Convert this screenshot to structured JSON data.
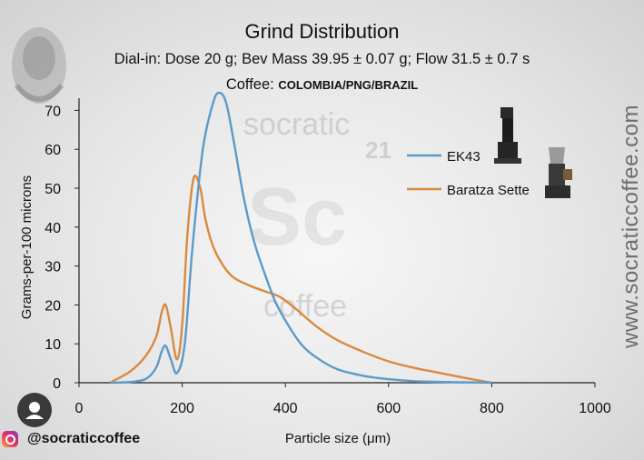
{
  "chart_data": {
    "type": "line",
    "title": "Grind Distribution",
    "subtitle": "Dial-in: Dose 20 g; Bev Mass 39.95 ± 0.07 g; Flow 31.5 ± 0.7 s",
    "coffee_label": "Coffee:",
    "coffee_value": "COLOMBIA/PNG/BRAZIL",
    "xlabel": "Particle size (μm)",
    "ylabel": "Grams-per-100 microns",
    "xlim": [
      0,
      1000
    ],
    "ylim": [
      0,
      75
    ],
    "xticks": [
      0,
      200,
      400,
      600,
      800,
      1000
    ],
    "yticks": [
      0,
      10,
      20,
      30,
      40,
      50,
      60,
      70
    ],
    "legend_position": "top-right",
    "series": [
      {
        "name": "EK43",
        "color": "#5b9bc8",
        "x": [
          60,
          100,
          130,
          150,
          160,
          168,
          178,
          190,
          205,
          220,
          240,
          260,
          272,
          285,
          300,
          320,
          340,
          360,
          380,
          400,
          430,
          460,
          500,
          550,
          600,
          650,
          700,
          750,
          800
        ],
        "y": [
          0,
          0.2,
          1,
          4,
          8,
          9.5,
          6,
          2.5,
          10,
          35,
          60,
          72,
          74.5,
          72,
          62,
          47,
          36,
          28,
          21,
          16,
          10,
          6.5,
          3.5,
          1.8,
          0.9,
          0.4,
          0.2,
          0.1,
          0
        ]
      },
      {
        "name": "Baratza Sette",
        "color": "#d98a3f",
        "x": [
          60,
          100,
          130,
          150,
          160,
          168,
          178,
          190,
          200,
          210,
          222,
          235,
          245,
          260,
          280,
          300,
          330,
          360,
          390,
          420,
          460,
          500,
          550,
          600,
          650,
          700,
          750,
          800
        ],
        "y": [
          0,
          3,
          7,
          12,
          18,
          20,
          14,
          6,
          15,
          38,
          52.5,
          50,
          42,
          35,
          30,
          27,
          25,
          23.5,
          22,
          19,
          14.5,
          11,
          8,
          5.5,
          3.8,
          2.5,
          1.2,
          0
        ]
      }
    ]
  },
  "watermark": {
    "socratic": "socratic",
    "number": "21",
    "sc": "Sc",
    "coffee": "coffee"
  },
  "side_url": "www.socraticcoffee.com",
  "instagram_handle": "@socraticcoffee",
  "colors": {
    "axis": "#222222",
    "background": "#e9e9e9"
  }
}
